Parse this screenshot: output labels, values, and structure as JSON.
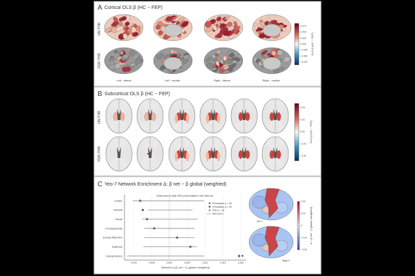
{
  "panel_a": {
    "letter": "A",
    "title": "Cortical OLS β (HC − FEP)",
    "rows": [
      "UN-THR",
      "FDR-THR"
    ],
    "views": [
      "Left - lateral",
      "Left - medial",
      "Right - lateral",
      "Right - medial"
    ],
    "colorbar": {
      "label": "OLS β (HC − FEP)",
      "ticks": [
        "0.075",
        "0.050",
        "0.025",
        "0.000",
        "−0.025",
        "−0.050",
        "−0.075"
      ],
      "colormap": [
        "#67001f",
        "#d6604d",
        "#f7f7f7",
        "#4393c3",
        "#053061"
      ]
    }
  },
  "panel_b": {
    "letter": "B",
    "title": "Subcortical OLS β (HC − FEP)",
    "rows": [
      "UN-THR",
      "FDR-THR"
    ],
    "colorbar": {
      "label": "OLS β (HC − FEP)",
      "ticks": [
        "0.04",
        "0.02",
        "0.00",
        "−0.02",
        "−0.04"
      ]
    }
  },
  "panel_c": {
    "letter": "C",
    "title": "Yeo-7 Network Enrichment Δ: β net − β global (weighted)",
    "brain_labels": [
      "Left H",
      "Right H"
    ],
    "colorbar": {
      "label": "Δ = β net − β global (weighted)",
      "ticks": [
        "0.02",
        "0.01",
        "0",
        "−0.01",
        "−0.02"
      ],
      "colormap": [
        "#b40426",
        "#dddcdc",
        "#3b4cc0"
      ]
    }
  },
  "chart_data": {
    "type": "scatter",
    "title": "Observed Δ with 95% permutation null interval",
    "xlabel": "Network Δ (β_net − β_global, weighted)",
    "ylabel": "",
    "xlim": [
      -0.0125,
      0.0215
    ],
    "xticks": [
      "−0.010",
      "−0.005",
      "0.000",
      "0.005",
      "0.010",
      "0.015",
      "0.020"
    ],
    "xtick_values": [
      -0.01,
      -0.005,
      0.0,
      0.005,
      0.01,
      0.015,
      0.02
    ],
    "grid": "vertical",
    "categories": [
      "Limbic",
      "Default",
      "Visual",
      "Frontoparietal",
      "Dorsal Attention",
      "Salience",
      "Somatomotor"
    ],
    "observed": [
      -0.0081,
      -0.0074,
      -0.0062,
      -0.0042,
      0.0022,
      0.0059,
      0.0195
    ],
    "null_ci_low": [
      -0.0102,
      -0.006,
      -0.0075,
      -0.007,
      -0.007,
      -0.0072,
      -0.0118
    ],
    "null_ci_high": [
      0.0097,
      0.0065,
      0.008,
      0.007,
      0.007,
      0.0077,
      0.0097
    ],
    "perm_significant": [
      false,
      true,
      false,
      false,
      false,
      false,
      true
    ],
    "fdr_significant": [
      false,
      false,
      false,
      false,
      false,
      false,
      true
    ],
    "legend": {
      "placement": "top-right",
      "entries": [
        "Permutation p < .05",
        "Permutation p ≥ .05",
        "FDR q < .05",
        "95% null CI"
      ]
    },
    "colors": {
      "significant": "#3a6fc4",
      "nonsignificant": "#777777",
      "ci": "#999999"
    }
  }
}
